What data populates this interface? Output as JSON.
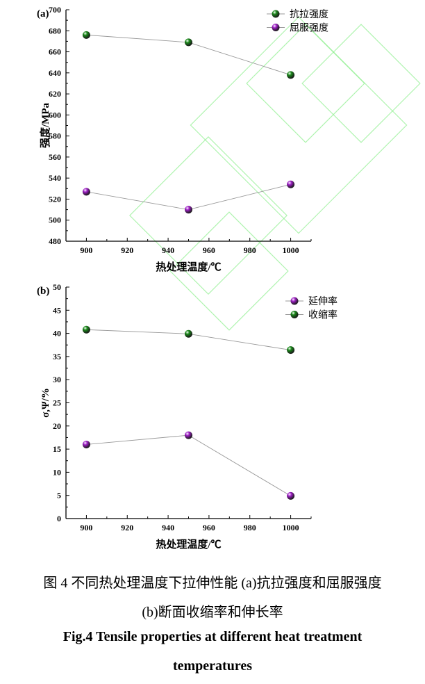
{
  "chart_data": [
    {
      "type": "line",
      "panel_label": "(a)",
      "xlabel": "热处理温度/℃",
      "ylabel": "强度/MPa",
      "xlim": [
        890,
        1010
      ],
      "ylim": [
        480,
        700
      ],
      "xticks": [
        900,
        920,
        940,
        960,
        980,
        1000
      ],
      "yticks": [
        480,
        500,
        520,
        540,
        560,
        580,
        600,
        620,
        640,
        660,
        680,
        700
      ],
      "x": [
        900,
        950,
        1000
      ],
      "grid": false,
      "legend_position": "top-right",
      "series": [
        {
          "name": "抗拉强度",
          "values": [
            676,
            669,
            638
          ],
          "color": "#1a8a1a"
        },
        {
          "name": "屈服强度",
          "values": [
            527,
            510,
            534
          ],
          "color": "#a020c8"
        }
      ]
    },
    {
      "type": "line",
      "panel_label": "(b)",
      "xlabel": "热处理温度/℃",
      "ylabel": "σ,Ψ/%",
      "xlim": [
        890,
        1010
      ],
      "ylim": [
        0,
        50
      ],
      "xticks": [
        900,
        920,
        940,
        960,
        980,
        1000
      ],
      "yticks": [
        0,
        5,
        10,
        15,
        20,
        25,
        30,
        35,
        40,
        45,
        50
      ],
      "x": [
        900,
        950,
        1000
      ],
      "grid": false,
      "legend_position": "top-right",
      "series": [
        {
          "name": "延伸率",
          "values": [
            16,
            18,
            4.9
          ],
          "color": "#a020c8"
        },
        {
          "name": "收缩率",
          "values": [
            40.8,
            39.9,
            36.4
          ],
          "color": "#1a8a1a"
        }
      ]
    }
  ],
  "caption": {
    "cn_line1": "图 4  不同热处理温度下拉伸性能  (a)抗拉强度和屈服强度",
    "cn_line2": "(b)断面收缩率和伸长率",
    "en_line1": "Fig.4 Tensile properties at different heat treatment",
    "en_line2": "temperatures"
  }
}
